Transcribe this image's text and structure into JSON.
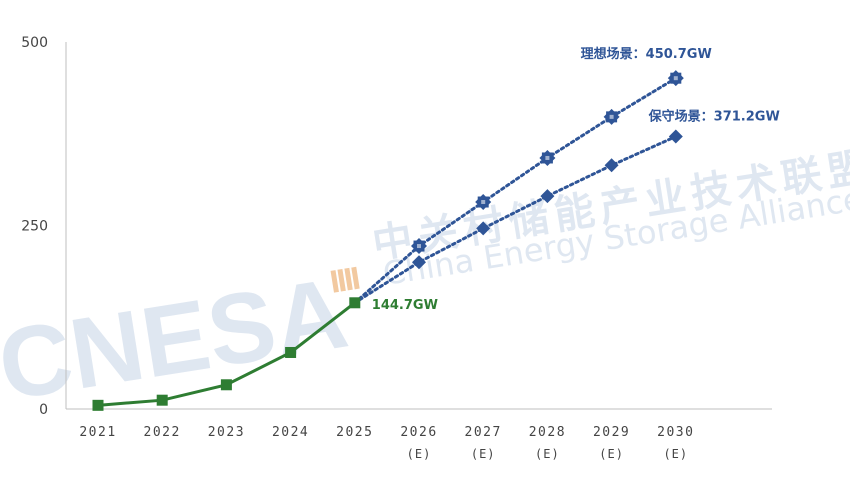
{
  "watermark": {
    "logo": "CNESA",
    "name_cn": "中关村储能产业技术联盟",
    "name_en": "China Energy Storage Alliance"
  },
  "chart_data": {
    "type": "line",
    "title": "",
    "xlabel": "",
    "ylabel": "",
    "ylim": [
      0,
      500
    ],
    "yticks": [
      0,
      250,
      500
    ],
    "grid": false,
    "categories": [
      "2021",
      "2022",
      "2023",
      "2024",
      "2025",
      "2026",
      "2027",
      "2028",
      "2029",
      "2030"
    ],
    "category_sublabels": [
      "",
      "",
      "",
      "",
      "",
      "(E)",
      "(E)",
      "(E)",
      "(E)",
      "(E)"
    ],
    "series": [
      {
        "key": "historical",
        "style": "solid",
        "marker": "square",
        "color": "#2e7d32",
        "points": [
          [
            "2021",
            5
          ],
          [
            "2022",
            12
          ],
          [
            "2023",
            33
          ],
          [
            "2024",
            77
          ],
          [
            "2025",
            144.7
          ]
        ]
      },
      {
        "name": "理想场景",
        "key": "ideal",
        "style": "dotted",
        "marker": "star",
        "color": "#2f5597",
        "points": [
          [
            "2025",
            144.7
          ],
          [
            "2026",
            222
          ],
          [
            "2027",
            282
          ],
          [
            "2028",
            342
          ],
          [
            "2029",
            398
          ],
          [
            "2030",
            450.7
          ]
        ]
      },
      {
        "name": "保守场景",
        "key": "conservative",
        "style": "dotted",
        "marker": "diamond",
        "color": "#2f5597",
        "points": [
          [
            "2025",
            144.7
          ],
          [
            "2026",
            200
          ],
          [
            "2027",
            246
          ],
          [
            "2028",
            290
          ],
          [
            "2029",
            332
          ],
          [
            "2030",
            371.2
          ]
        ]
      }
    ],
    "annotations": {
      "historical_end": "144.7GW",
      "ideal_end": "理想场景：450.7GW",
      "conservative_end": "保守场景：371.2GW"
    }
  }
}
